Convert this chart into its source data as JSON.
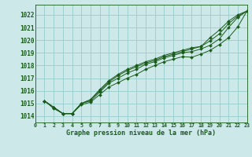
{
  "xlabel": "Graphe pression niveau de la mer (hPa)",
  "xlim": [
    0,
    23
  ],
  "ylim": [
    1013.5,
    1022.8
  ],
  "yticks": [
    1014,
    1015,
    1016,
    1017,
    1018,
    1019,
    1020,
    1021,
    1022
  ],
  "xticks": [
    0,
    1,
    2,
    3,
    4,
    5,
    6,
    7,
    8,
    9,
    10,
    11,
    12,
    13,
    14,
    15,
    16,
    17,
    18,
    19,
    20,
    21,
    22,
    23
  ],
  "bg_color": "#cce8e8",
  "grid_color": "#99cccc",
  "line_color": "#1a5c1a",
  "series": [
    [
      1015.2,
      1014.7,
      1014.2,
      1014.2,
      1015.0,
      1015.3,
      1016.1,
      1016.8,
      1017.3,
      1017.7,
      1018.0,
      1018.3,
      1018.5,
      1018.8,
      1019.0,
      1019.2,
      1019.4,
      1019.5,
      1020.2,
      1020.8,
      1021.5,
      1022.0,
      1022.3
    ],
    [
      1015.2,
      1014.7,
      1014.2,
      1014.2,
      1015.0,
      1015.3,
      1016.0,
      1016.7,
      1017.2,
      1017.6,
      1017.9,
      1018.2,
      1018.4,
      1018.7,
      1018.9,
      1019.1,
      1019.3,
      1019.5,
      1019.95,
      1020.5,
      1021.3,
      1021.9,
      1022.3
    ],
    [
      1015.2,
      1014.7,
      1014.2,
      1014.2,
      1015.0,
      1015.2,
      1015.9,
      1016.6,
      1017.0,
      1017.4,
      1017.7,
      1018.1,
      1018.3,
      1018.6,
      1018.8,
      1019.0,
      1019.1,
      1019.3,
      1019.6,
      1020.1,
      1021.0,
      1021.8,
      1022.3
    ],
    [
      1015.2,
      1014.6,
      1014.2,
      1014.2,
      1014.9,
      1015.1,
      1015.7,
      1016.3,
      1016.65,
      1017.0,
      1017.3,
      1017.7,
      1018.0,
      1018.3,
      1018.5,
      1018.7,
      1018.65,
      1018.9,
      1019.2,
      1019.65,
      1020.2,
      1021.05,
      1022.3
    ]
  ]
}
